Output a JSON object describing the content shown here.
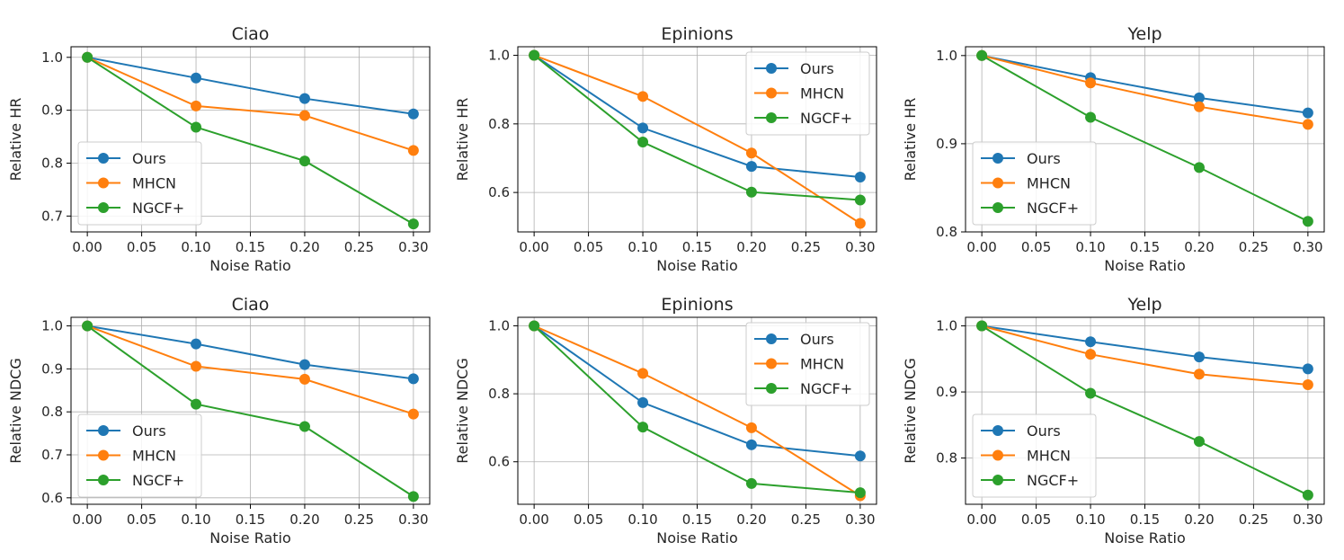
{
  "chart_data": [
    {
      "type": "line",
      "title": "Ciao",
      "xlabel": "Noise Ratio",
      "ylabel": "Relative HR",
      "xlim": [
        -0.015,
        0.315
      ],
      "ylim": [
        0.67,
        1.02
      ],
      "xticks": [
        0.0,
        0.05,
        0.1,
        0.15,
        0.2,
        0.25,
        0.3
      ],
      "xtick_labels": [
        "0.00",
        "0.05",
        "0.10",
        "0.15",
        "0.20",
        "0.25",
        "0.30"
      ],
      "yticks": [
        0.7,
        0.8,
        0.9,
        1.0
      ],
      "ytick_labels": [
        "0.7",
        "0.8",
        "0.9",
        "1.0"
      ],
      "grid": true,
      "legend": "lower-left",
      "x": [
        0.0,
        0.1,
        0.2,
        0.3
      ],
      "series": [
        {
          "name": "Ours",
          "color": "#1f77b4",
          "values": [
            1.0,
            0.961,
            0.922,
            0.893
          ]
        },
        {
          "name": "MHCN",
          "color": "#ff7f0e",
          "values": [
            1.0,
            0.908,
            0.89,
            0.824
          ]
        },
        {
          "name": "NGCF+",
          "color": "#2ca02c",
          "values": [
            1.0,
            0.868,
            0.804,
            0.685
          ]
        }
      ]
    },
    {
      "type": "line",
      "title": "Epinions",
      "xlabel": "Noise Ratio",
      "ylabel": "Relative HR",
      "xlim": [
        -0.015,
        0.315
      ],
      "ylim": [
        0.485,
        1.025
      ],
      "xticks": [
        0.0,
        0.05,
        0.1,
        0.15,
        0.2,
        0.25,
        0.3
      ],
      "xtick_labels": [
        "0.00",
        "0.05",
        "0.10",
        "0.15",
        "0.20",
        "0.25",
        "0.30"
      ],
      "yticks": [
        0.6,
        0.8,
        1.0
      ],
      "ytick_labels": [
        "0.6",
        "0.8",
        "1.0"
      ],
      "grid": true,
      "legend": "upper-right",
      "x": [
        0.0,
        0.1,
        0.2,
        0.3
      ],
      "series": [
        {
          "name": "Ours",
          "color": "#1f77b4",
          "values": [
            1.0,
            0.788,
            0.676,
            0.645
          ]
        },
        {
          "name": "MHCN",
          "color": "#ff7f0e",
          "values": [
            1.0,
            0.88,
            0.715,
            0.51
          ]
        },
        {
          "name": "NGCF+",
          "color": "#2ca02c",
          "values": [
            1.0,
            0.747,
            0.601,
            0.578
          ]
        }
      ]
    },
    {
      "type": "line",
      "title": "Yelp",
      "xlabel": "Noise Ratio",
      "ylabel": "Relative HR",
      "xlim": [
        -0.015,
        0.315
      ],
      "ylim": [
        0.8,
        1.01
      ],
      "xticks": [
        0.0,
        0.05,
        0.1,
        0.15,
        0.2,
        0.25,
        0.3
      ],
      "xtick_labels": [
        "0.00",
        "0.05",
        "0.10",
        "0.15",
        "0.20",
        "0.25",
        "0.30"
      ],
      "yticks": [
        0.8,
        0.9,
        1.0
      ],
      "ytick_labels": [
        "0.8",
        "0.9",
        "1.0"
      ],
      "grid": true,
      "legend": "lower-left",
      "x": [
        0.0,
        0.1,
        0.2,
        0.3
      ],
      "series": [
        {
          "name": "Ours",
          "color": "#1f77b4",
          "values": [
            1.0,
            0.975,
            0.952,
            0.935
          ]
        },
        {
          "name": "MHCN",
          "color": "#ff7f0e",
          "values": [
            1.0,
            0.969,
            0.942,
            0.922
          ]
        },
        {
          "name": "NGCF+",
          "color": "#2ca02c",
          "values": [
            1.0,
            0.93,
            0.873,
            0.812
          ]
        }
      ]
    },
    {
      "type": "line",
      "title": "Ciao",
      "xlabel": "Noise Ratio",
      "ylabel": "Relative NDCG",
      "xlim": [
        -0.015,
        0.315
      ],
      "ylim": [
        0.585,
        1.02
      ],
      "xticks": [
        0.0,
        0.05,
        0.1,
        0.15,
        0.2,
        0.25,
        0.3
      ],
      "xtick_labels": [
        "0.00",
        "0.05",
        "0.10",
        "0.15",
        "0.20",
        "0.25",
        "0.30"
      ],
      "yticks": [
        0.6,
        0.7,
        0.8,
        0.9,
        1.0
      ],
      "ytick_labels": [
        "0.6",
        "0.7",
        "0.8",
        "0.9",
        "1.0"
      ],
      "grid": true,
      "legend": "lower-left",
      "x": [
        0.0,
        0.1,
        0.2,
        0.3
      ],
      "series": [
        {
          "name": "Ours",
          "color": "#1f77b4",
          "values": [
            1.0,
            0.958,
            0.91,
            0.877
          ]
        },
        {
          "name": "MHCN",
          "color": "#ff7f0e",
          "values": [
            1.0,
            0.906,
            0.876,
            0.795
          ]
        },
        {
          "name": "NGCF+",
          "color": "#2ca02c",
          "values": [
            1.0,
            0.818,
            0.766,
            0.603
          ]
        }
      ]
    },
    {
      "type": "line",
      "title": "Epinions",
      "xlabel": "Noise Ratio",
      "ylabel": "Relative NDCG",
      "xlim": [
        -0.015,
        0.315
      ],
      "ylim": [
        0.475,
        1.025
      ],
      "xticks": [
        0.0,
        0.05,
        0.1,
        0.15,
        0.2,
        0.25,
        0.3
      ],
      "xtick_labels": [
        "0.00",
        "0.05",
        "0.10",
        "0.15",
        "0.20",
        "0.25",
        "0.30"
      ],
      "yticks": [
        0.6,
        0.8,
        1.0
      ],
      "ytick_labels": [
        "0.6",
        "0.8",
        "1.0"
      ],
      "grid": true,
      "legend": "upper-right",
      "x": [
        0.0,
        0.1,
        0.2,
        0.3
      ],
      "series": [
        {
          "name": "Ours",
          "color": "#1f77b4",
          "values": [
            1.0,
            0.774,
            0.65,
            0.617
          ]
        },
        {
          "name": "MHCN",
          "color": "#ff7f0e",
          "values": [
            1.0,
            0.86,
            0.7,
            0.5
          ]
        },
        {
          "name": "NGCF+",
          "color": "#2ca02c",
          "values": [
            1.0,
            0.702,
            0.536,
            0.509
          ]
        }
      ]
    },
    {
      "type": "line",
      "title": "Yelp",
      "xlabel": "Noise Ratio",
      "ylabel": "Relative NDCG",
      "xlim": [
        -0.015,
        0.315
      ],
      "ylim": [
        0.73,
        1.013
      ],
      "xticks": [
        0.0,
        0.05,
        0.1,
        0.15,
        0.2,
        0.25,
        0.3
      ],
      "xtick_labels": [
        "0.00",
        "0.05",
        "0.10",
        "0.15",
        "0.20",
        "0.25",
        "0.30"
      ],
      "yticks": [
        0.8,
        0.9,
        1.0
      ],
      "ytick_labels": [
        "0.8",
        "0.9",
        "1.0"
      ],
      "grid": true,
      "legend": "lower-left",
      "x": [
        0.0,
        0.1,
        0.2,
        0.3
      ],
      "series": [
        {
          "name": "Ours",
          "color": "#1f77b4",
          "values": [
            1.0,
            0.976,
            0.953,
            0.935
          ]
        },
        {
          "name": "MHCN",
          "color": "#ff7f0e",
          "values": [
            1.0,
            0.957,
            0.927,
            0.911
          ]
        },
        {
          "name": "NGCF+",
          "color": "#2ca02c",
          "values": [
            1.0,
            0.898,
            0.825,
            0.744
          ]
        }
      ]
    }
  ]
}
